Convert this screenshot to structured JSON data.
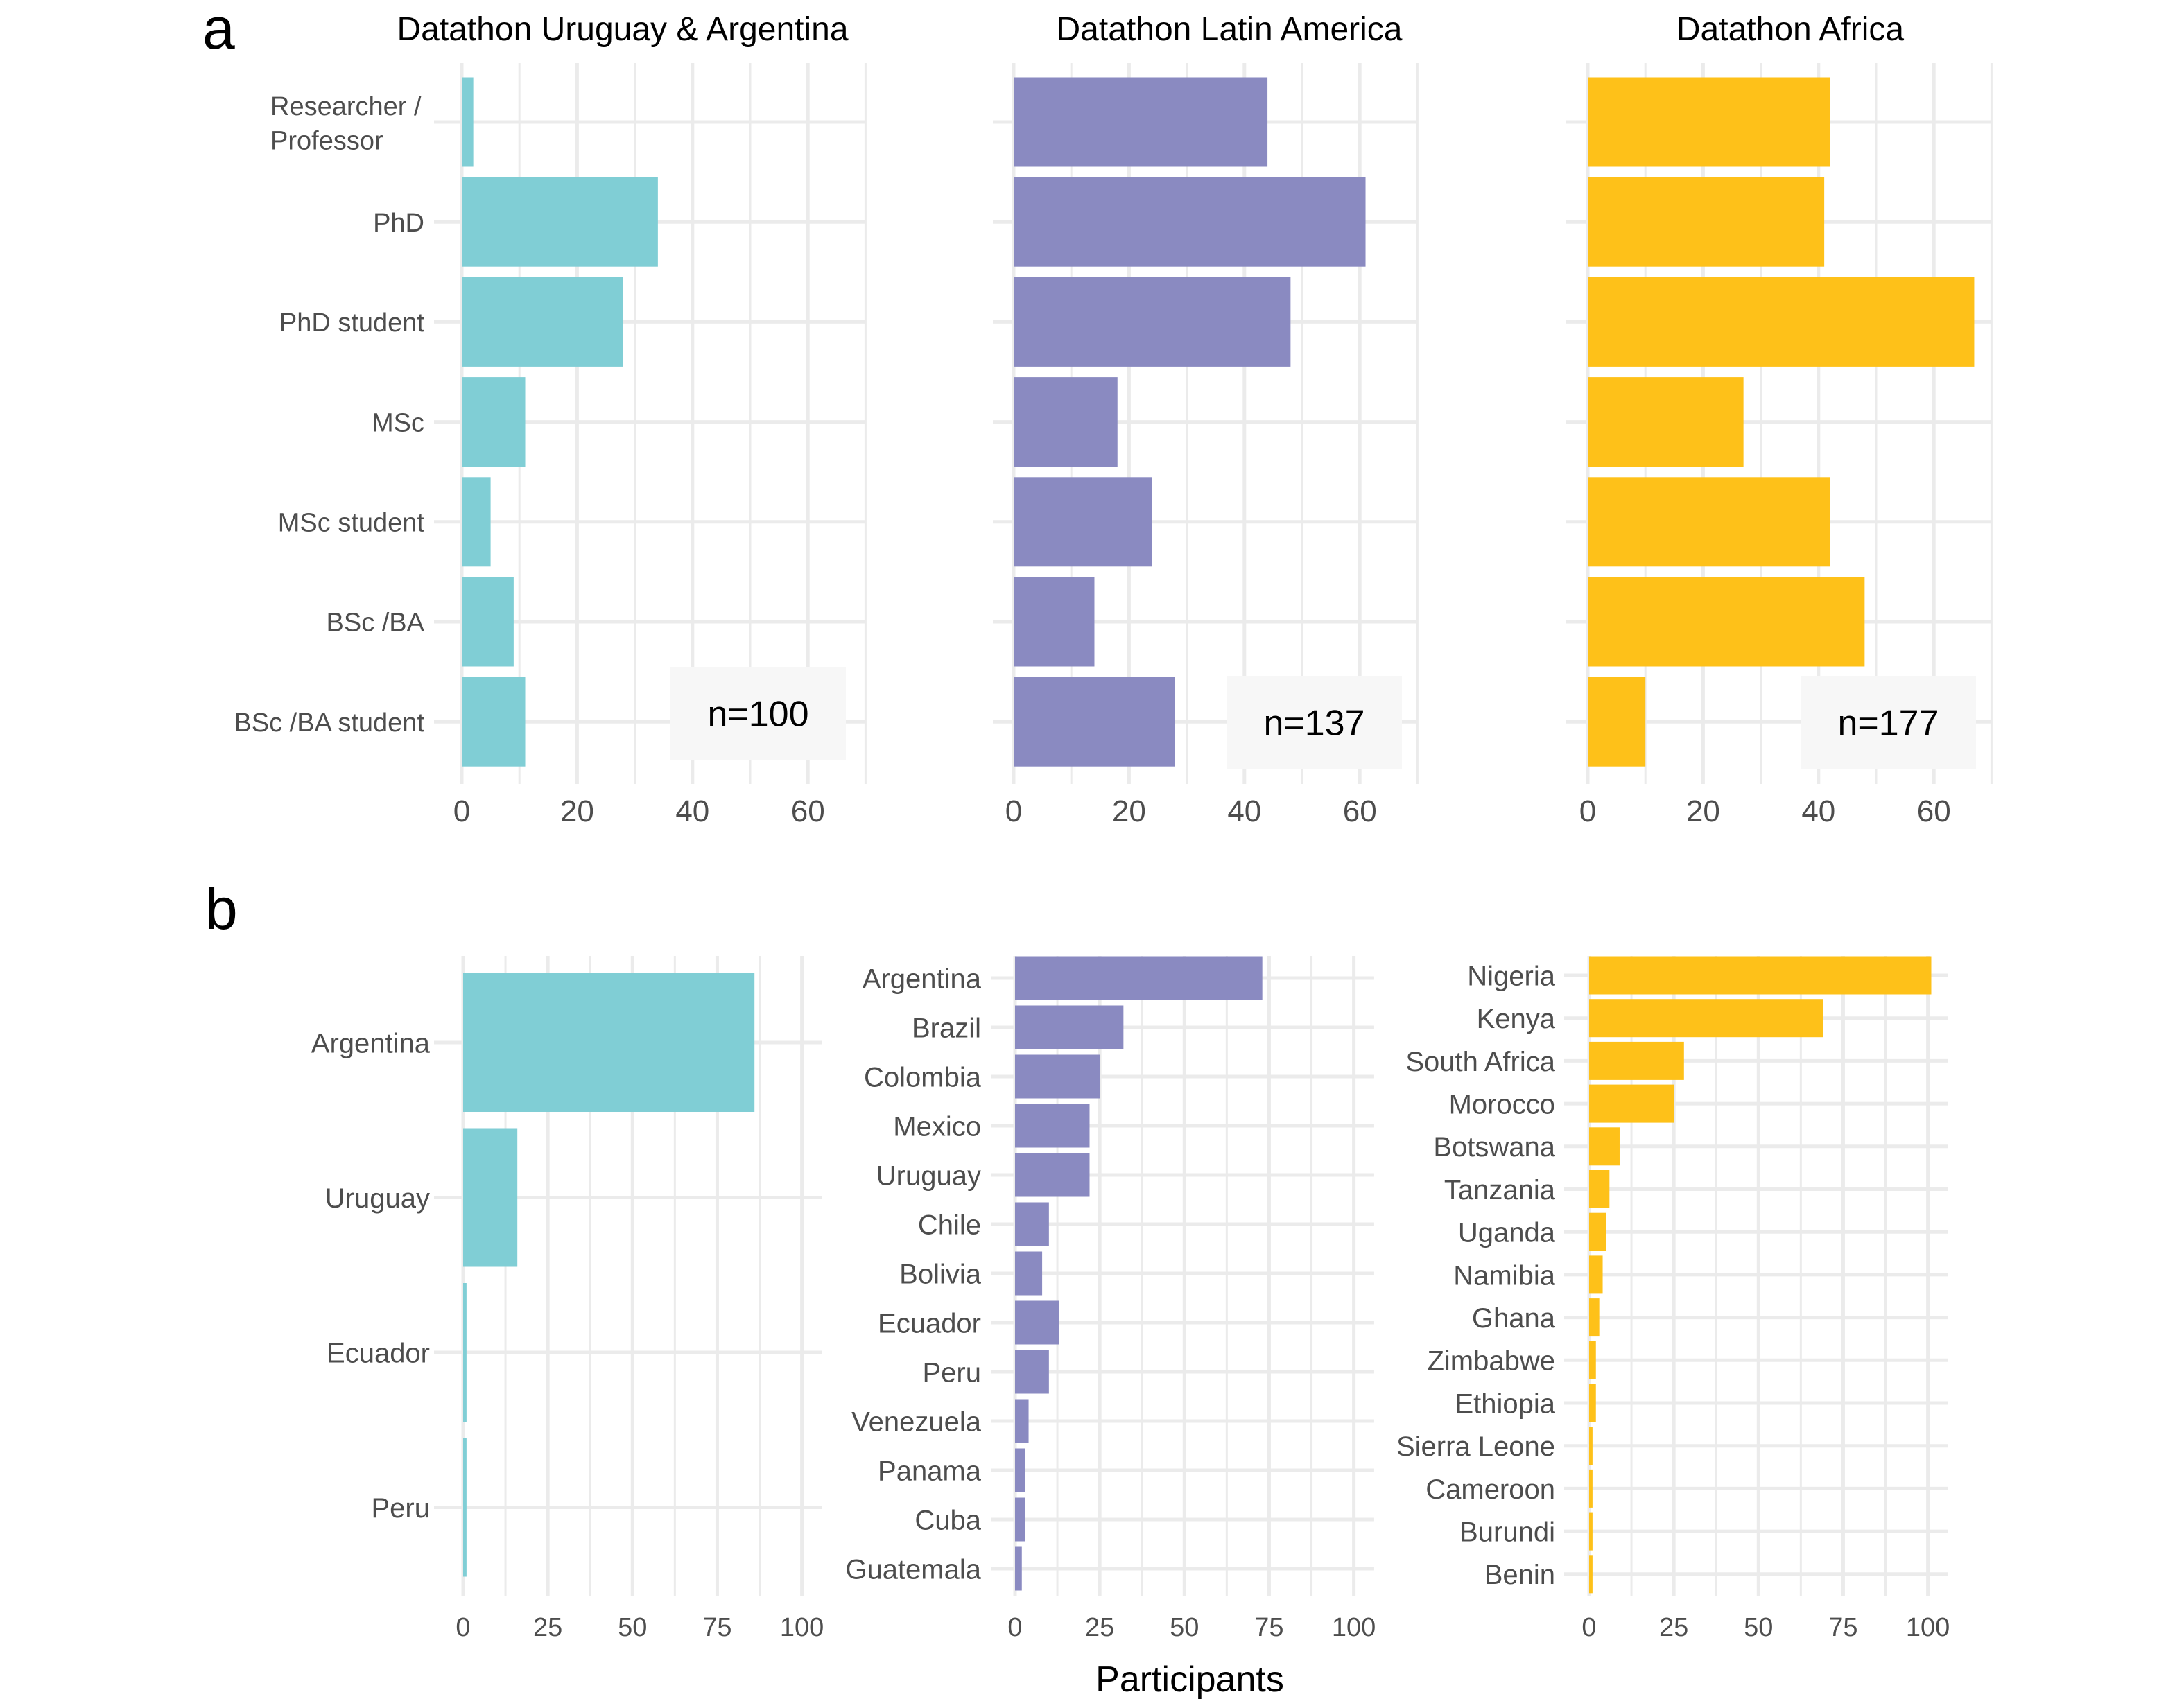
{
  "figure": {
    "panel_labels": [
      "a",
      "b"
    ],
    "shared_xlabel": "Participants",
    "colors": {
      "uruguay_argentina": "#80CED5",
      "latin_america": "#8A8AC1",
      "africa": "#FEC119",
      "grid": "#EBEBEB",
      "annotation_bg": "#F7F7F7"
    }
  },
  "chart_data": [
    {
      "type": "bar",
      "orientation": "horizontal",
      "panel": "a",
      "title": "Datathon Uruguay & Argentina",
      "categories": [
        "Researcher /\nProfessor",
        "PhD",
        "PhD student",
        "MSc",
        "MSc student",
        "BSc /BA",
        "BSc /BA student"
      ],
      "values": [
        2,
        34,
        28,
        11,
        5,
        9,
        11
      ],
      "xticks": [
        0,
        20,
        40,
        60
      ],
      "xlim": [
        0,
        70
      ],
      "annotation": "n=100",
      "color": "#80CED5",
      "grid": true
    },
    {
      "type": "bar",
      "orientation": "horizontal",
      "panel": "a",
      "title": "Datathon Latin America",
      "categories": [
        "Researcher /\nProfessor",
        "PhD",
        "PhD student",
        "MSc",
        "MSc student",
        "BSc /BA",
        "BSc /BA student"
      ],
      "values": [
        44,
        61,
        48,
        18,
        24,
        14,
        28
      ],
      "xticks": [
        0,
        20,
        40,
        60
      ],
      "xlim": [
        0,
        70
      ],
      "annotation": "n=137",
      "color": "#8A8AC1",
      "grid": true
    },
    {
      "type": "bar",
      "orientation": "horizontal",
      "panel": "a",
      "title": "Datathon Africa",
      "categories": [
        "Researcher /\nProfessor",
        "PhD",
        "PhD student",
        "MSc",
        "MSc student",
        "BSc /BA",
        "BSc /BA student"
      ],
      "values": [
        42,
        41,
        67,
        27,
        42,
        48,
        10
      ],
      "xticks": [
        0,
        20,
        40,
        60
      ],
      "xlim": [
        0,
        70
      ],
      "annotation": "n=177",
      "color": "#FEC119",
      "grid": true
    },
    {
      "type": "bar",
      "orientation": "horizontal",
      "panel": "b",
      "categories": [
        "Argentina",
        "Uruguay",
        "Ecuador",
        "Peru"
      ],
      "values": [
        86,
        16,
        1,
        1
      ],
      "xticks": [
        0,
        25,
        50,
        75,
        100
      ],
      "xlim": [
        0,
        106
      ],
      "color": "#80CED5",
      "grid": true
    },
    {
      "type": "bar",
      "orientation": "horizontal",
      "panel": "b",
      "categories": [
        "Argentina",
        "Brazil",
        "Colombia",
        "Mexico",
        "Uruguay",
        "Chile",
        "Bolivia",
        "Ecuador",
        "Peru",
        "Venezuela",
        "Panama",
        "Cuba",
        "Guatemala"
      ],
      "values": [
        73,
        32,
        25,
        22,
        22,
        10,
        8,
        13,
        10,
        4,
        3,
        3,
        2
      ],
      "xticks": [
        0,
        25,
        50,
        75,
        100
      ],
      "xlim": [
        0,
        106
      ],
      "color": "#8A8AC1",
      "grid": true
    },
    {
      "type": "bar",
      "orientation": "horizontal",
      "panel": "b",
      "categories": [
        "Nigeria",
        "Kenya",
        "South Africa",
        "Morocco",
        "Botswana",
        "Tanzania",
        "Uganda",
        "Namibia",
        "Ghana",
        "Zimbabwe",
        "Ethiopia",
        "Sierra Leone",
        "Cameroon",
        "Burundi",
        "Benin"
      ],
      "values": [
        101,
        69,
        28,
        25,
        9,
        6,
        5,
        4,
        3,
        2,
        2,
        1,
        1,
        1,
        1
      ],
      "xticks": [
        0,
        25,
        50,
        75,
        100
      ],
      "xlim": [
        0,
        106
      ],
      "color": "#FEC119",
      "grid": true
    }
  ]
}
